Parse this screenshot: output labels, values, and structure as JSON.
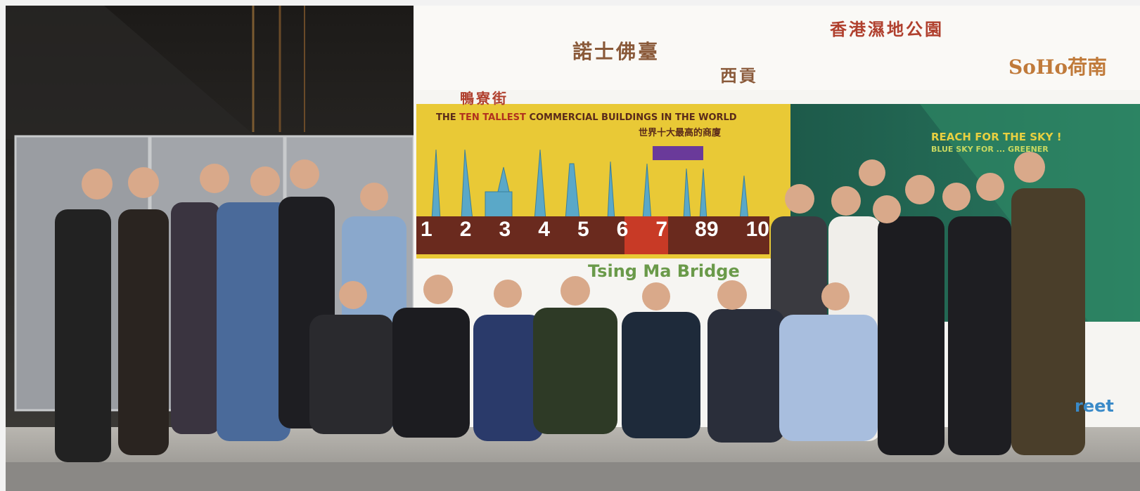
{
  "scene": {
    "signage": {
      "top_labels": [
        "香港濕地公園",
        "諾士佛臺",
        "西貢",
        "鴨寮街",
        "SoHo荷南"
      ],
      "panel_title_en_prefix": "THE ",
      "panel_title_en_bold": "TEN TALLEST",
      "panel_title_en_suffix": " COMMERCIAL BUILDINGS IN THE WORLD",
      "panel_title_cn": "世界十大最高的商廈",
      "rank_numbers": [
        "1",
        "2",
        "3",
        "4",
        "5",
        "6",
        "7",
        "89",
        "10"
      ],
      "bridge_label": "Tsing Ma Bridge",
      "green_panel_heading": "REACH FOR THE SKY !",
      "green_panel_sub": "BLUE SKY FOR ... GREENER",
      "street_label_fragment": "reet"
    }
  }
}
